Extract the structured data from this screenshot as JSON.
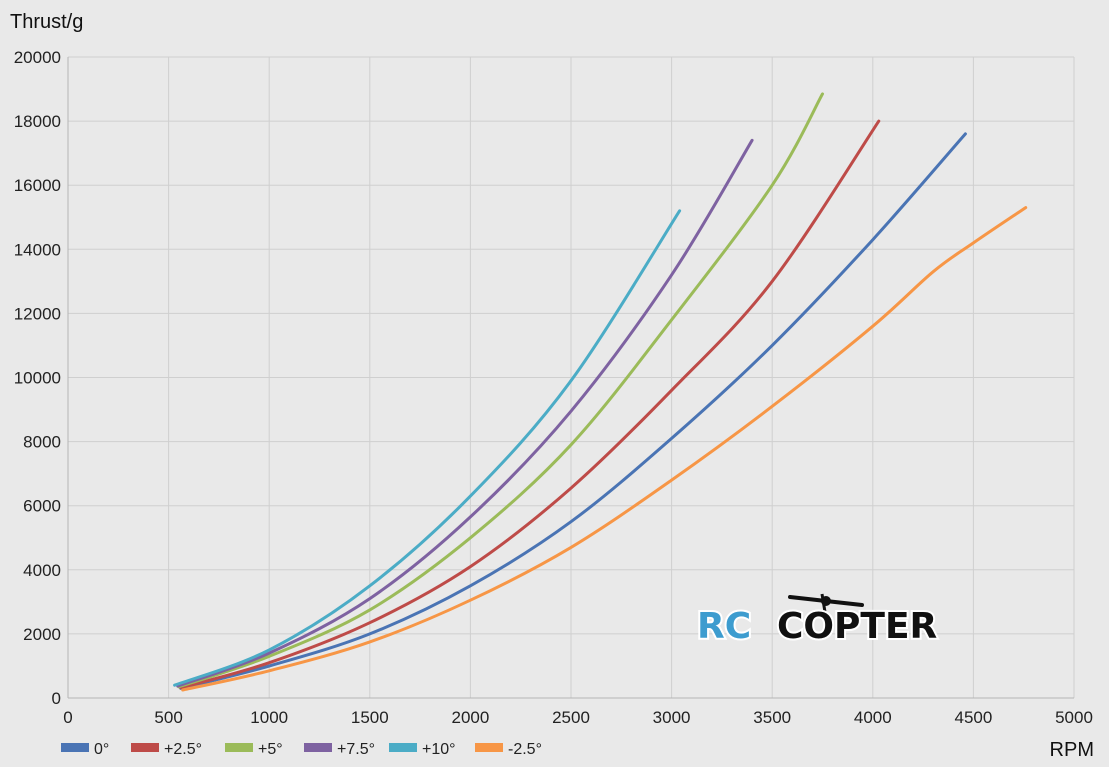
{
  "chart_data": {
    "type": "line",
    "ylabel": "Thrust/g",
    "xlabel": "RPM",
    "xlim": [
      0,
      5000
    ],
    "ylim": [
      0,
      20000
    ],
    "xticks": [
      "0",
      "500",
      "1000",
      "1500",
      "2000",
      "2500",
      "3000",
      "3500",
      "4000",
      "4500",
      "5000"
    ],
    "yticks": [
      "0",
      "2000",
      "4000",
      "6000",
      "8000",
      "10000",
      "12000",
      "14000",
      "16000",
      "18000",
      "20000"
    ],
    "grid": true,
    "legend_position": "bottom-left",
    "series": [
      {
        "name": "0°",
        "color": "#4a74b4",
        "x": [
          560,
          1000,
          1500,
          2000,
          2500,
          3000,
          3500,
          4000,
          4460
        ],
        "y": [
          300,
          1000,
          2000,
          3500,
          5500,
          8100,
          11000,
          14300,
          17600
        ]
      },
      {
        "name": "+2.5°",
        "color": "#be4b48",
        "x": [
          560,
          1000,
          1500,
          2000,
          2500,
          3000,
          3500,
          4030
        ],
        "y": [
          320,
          1100,
          2350,
          4100,
          6550,
          9600,
          13000,
          18000
        ]
      },
      {
        "name": "+5°",
        "color": "#9bbb59",
        "x": [
          550,
          1000,
          1500,
          2000,
          2500,
          3000,
          3500,
          3750
        ],
        "y": [
          350,
          1300,
          2750,
          5000,
          7900,
          11800,
          16000,
          18850
        ]
      },
      {
        "name": "+7.5°",
        "color": "#7e62a1",
        "x": [
          545,
          1000,
          1500,
          2000,
          2500,
          3000,
          3400
        ],
        "y": [
          370,
          1400,
          3100,
          5650,
          8950,
          13200,
          17400
        ]
      },
      {
        "name": "+10°",
        "color": "#4bacc6",
        "x": [
          530,
          1000,
          1500,
          2000,
          2500,
          3040
        ],
        "y": [
          400,
          1500,
          3500,
          6300,
          9900,
          15200
        ]
      },
      {
        "name": "-2.5°",
        "color": "#f79646",
        "x": [
          570,
          1000,
          1500,
          2000,
          2500,
          3000,
          3500,
          4000,
          4300,
          4500,
          4760
        ],
        "y": [
          250,
          850,
          1750,
          3050,
          4700,
          6800,
          9100,
          11600,
          13300,
          14200,
          15300
        ]
      }
    ]
  },
  "watermark": {
    "part1": "RC",
    "part2": "COPTER"
  }
}
